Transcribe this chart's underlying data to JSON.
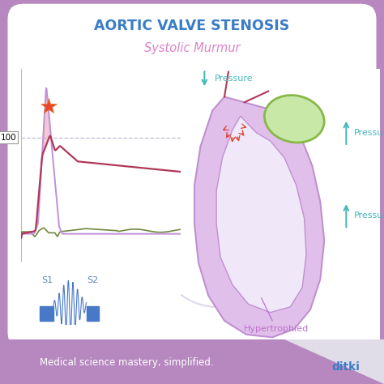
{
  "title": "AORTIC VALVE STENOSIS",
  "subtitle": "Systolic Murmur",
  "footer_text": "Medical science mastery, simplified.",
  "footer_brand": "ditki",
  "bg_outer": "#b688bf",
  "bg_card": "#ffffff",
  "title_color": "#3a7cc8",
  "subtitle_color": "#e080c8",
  "footer_color": "#b688bf",
  "heart_fill": "#e0c0ea",
  "heart_stroke": "#c090d0",
  "heart_inner_fill": "#f0e8f8",
  "aorta_fill": "#c8e8a8",
  "aorta_stroke": "#88b848",
  "murmur_fill": "#f0b8c8",
  "aortic_curve_color": "#b03858",
  "ventricular_curve_color": "#708840",
  "bar_color": "#4878c8",
  "s1_s2_color": "#5888b8",
  "dashed_line_color": "#c0b8d8",
  "star_color": "#e84828",
  "arrow_color": "#48b8b8",
  "red_arrow_color": "#e04030",
  "hypertrophied_color": "#c070d0",
  "circ_arc_color": "#d0c8e0",
  "purple_curve_color": "#c090d8"
}
